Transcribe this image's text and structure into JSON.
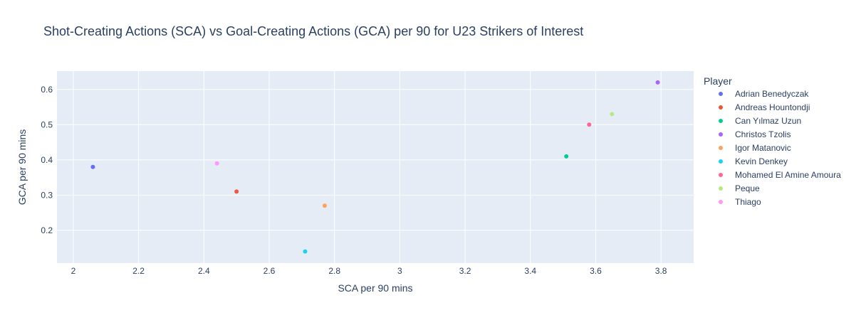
{
  "chart_data": {
    "type": "scatter",
    "title": "Shot-Creating Actions (SCA) vs Goal-Creating Actions (GCA) per 90 for U23 Strikers of Interest",
    "xlabel": "SCA per 90 mins",
    "ylabel": "GCA per 90 mins",
    "xlim": [
      1.95,
      3.9
    ],
    "ylim": [
      0.107,
      0.652
    ],
    "xticks": [
      2,
      2.2,
      2.4,
      2.6,
      2.8,
      3,
      3.2,
      3.4,
      3.6,
      3.8
    ],
    "xtick_labels": [
      "2",
      "2.2",
      "2.4",
      "2.6",
      "2.8",
      "3",
      "3.2",
      "3.4",
      "3.6",
      "3.8"
    ],
    "yticks": [
      0.2,
      0.3,
      0.4,
      0.5,
      0.6
    ],
    "ytick_labels": [
      "0.2",
      "0.3",
      "0.4",
      "0.5",
      "0.6"
    ],
    "grid": true,
    "legend_title": "Player",
    "legend_position": "right",
    "series": [
      {
        "name": "Adrian Benedyczak",
        "color": "#636efa",
        "x": 2.06,
        "y": 0.38
      },
      {
        "name": "Andreas Hountondji",
        "color": "#ef553b",
        "x": 2.5,
        "y": 0.31
      },
      {
        "name": "Can Yılmaz Uzun",
        "color": "#00cc96",
        "x": 3.51,
        "y": 0.41
      },
      {
        "name": "Christos Tzolis",
        "color": "#ab63fa",
        "x": 3.79,
        "y": 0.62
      },
      {
        "name": "Igor Matanovic",
        "color": "#ffa15a",
        "x": 2.77,
        "y": 0.27
      },
      {
        "name": "Kevin Denkey",
        "color": "#19d3f3",
        "x": 2.71,
        "y": 0.14
      },
      {
        "name": "Mohamed El Amine Amoura",
        "color": "#ff6692",
        "x": 3.58,
        "y": 0.5
      },
      {
        "name": "Peque",
        "color": "#b6e880",
        "x": 3.65,
        "y": 0.53
      },
      {
        "name": "Thiago",
        "color": "#ff97ff",
        "x": 2.44,
        "y": 0.39
      }
    ]
  }
}
